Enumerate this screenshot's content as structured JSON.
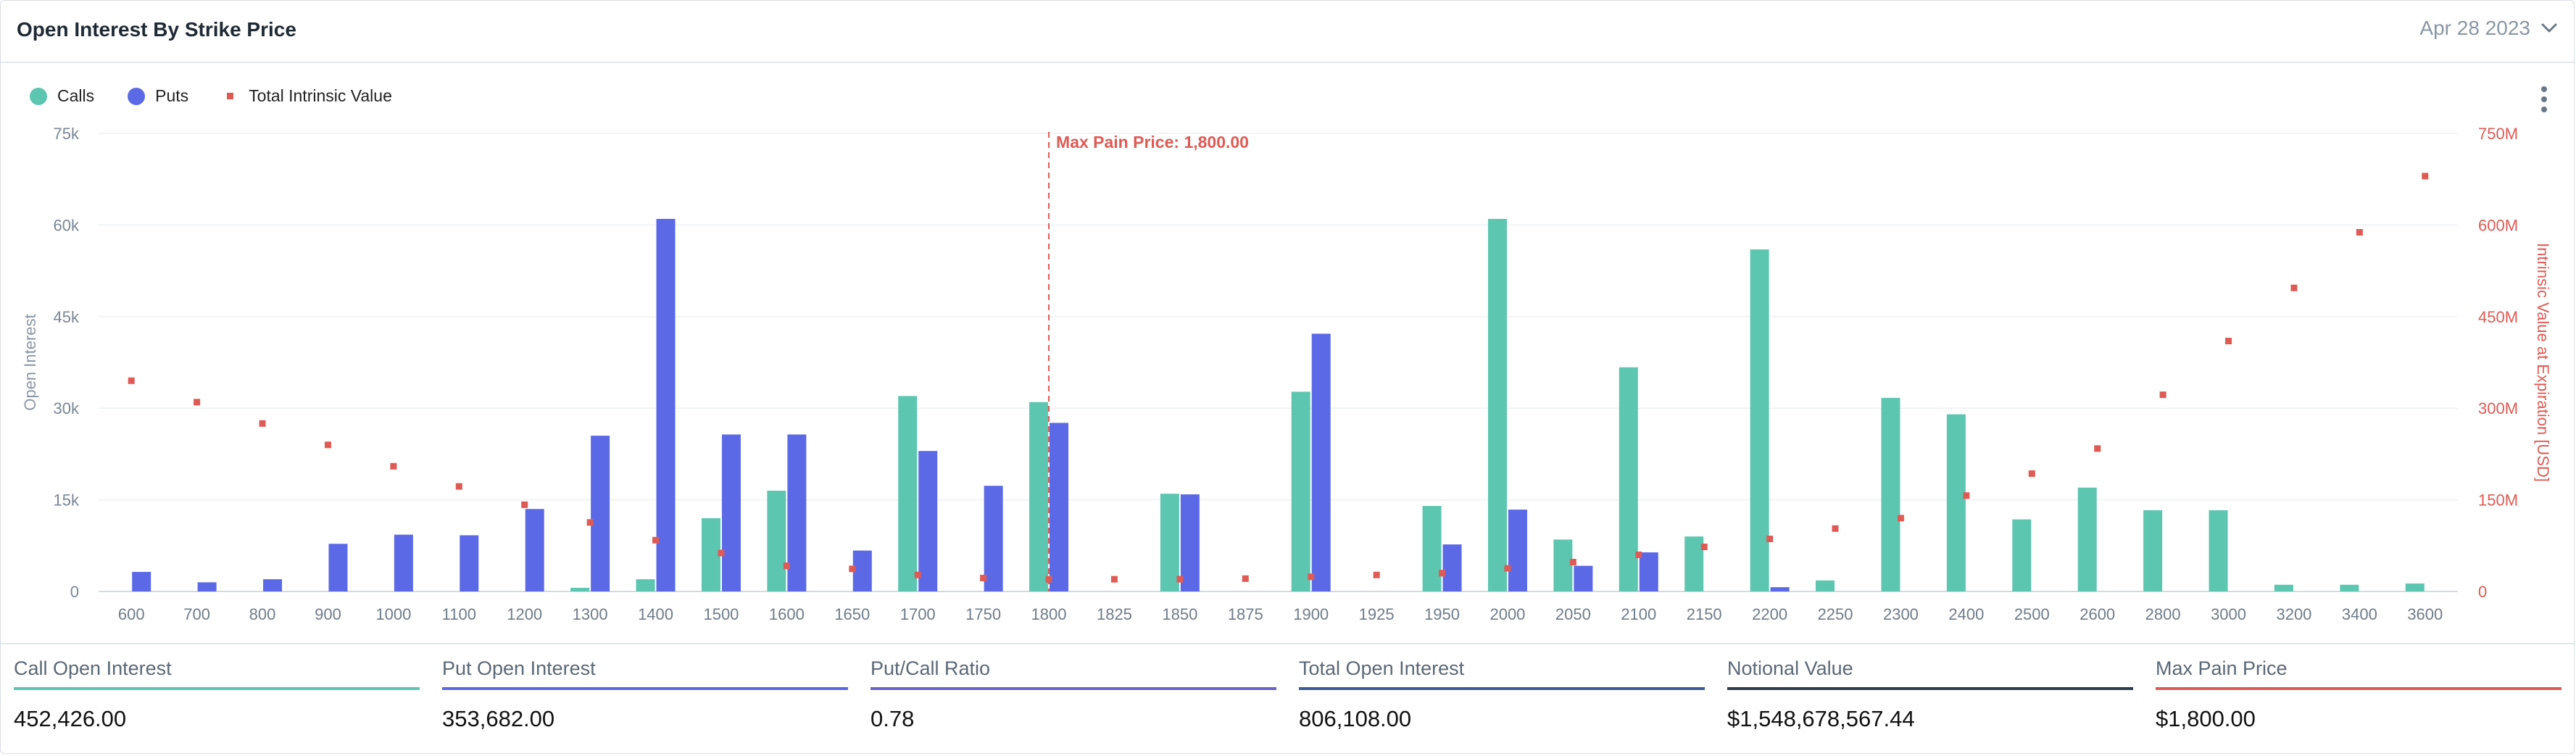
{
  "header": {
    "title": "Open Interest By Strike Price",
    "date": "Apr 28 2023"
  },
  "legend": [
    {
      "label": "Calls",
      "color": "#5cc6b1",
      "shape": "circle"
    },
    {
      "label": "Puts",
      "color": "#5b69e6",
      "shape": "circle"
    },
    {
      "label": "Total Intrinsic Value",
      "color": "#e05a55",
      "shape": "square"
    }
  ],
  "chart_data": {
    "type": "bar",
    "categories": [
      "600",
      "700",
      "800",
      "900",
      "1000",
      "1100",
      "1200",
      "1300",
      "1400",
      "1500",
      "1600",
      "1650",
      "1700",
      "1750",
      "1800",
      "1825",
      "1850",
      "1875",
      "1900",
      "1925",
      "1950",
      "2000",
      "2050",
      "2100",
      "2150",
      "2200",
      "2250",
      "2300",
      "2400",
      "2500",
      "2600",
      "2800",
      "3000",
      "3200",
      "3400",
      "3600"
    ],
    "series": [
      {
        "name": "Calls",
        "color": "#5cc6b1",
        "axis": "left",
        "values": [
          0,
          0,
          0,
          0,
          0,
          0,
          0,
          600,
          2000,
          12000,
          16500,
          0,
          32000,
          0,
          31000,
          0,
          16000,
          0,
          32700,
          0,
          14000,
          61000,
          8500,
          36700,
          9000,
          56000,
          1800,
          31700,
          29000,
          11800,
          17000,
          13300,
          13300,
          1100,
          1100,
          1300
        ]
      },
      {
        "name": "Puts",
        "color": "#5b69e6",
        "axis": "left",
        "values": [
          3200,
          1500,
          2000,
          7800,
          9300,
          9200,
          13500,
          25500,
          61000,
          25700,
          25700,
          6700,
          23000,
          17300,
          27600,
          0,
          15900,
          0,
          42200,
          0,
          7700,
          13400,
          4200,
          6400,
          0,
          700,
          0,
          0,
          0,
          0,
          0,
          0,
          0,
          0,
          0,
          0
        ]
      },
      {
        "name": "Total Intrinsic Value",
        "color": "#e05a55",
        "axis": "right",
        "type": "scatter",
        "values": [
          345,
          310,
          275,
          240,
          205,
          172,
          142,
          113,
          84,
          63,
          42,
          37,
          27,
          22,
          20,
          20,
          20,
          21,
          24,
          27,
          30,
          38,
          48,
          60,
          73,
          86,
          103,
          120,
          157,
          193,
          234,
          322,
          410,
          497,
          588,
          680
        ]
      }
    ],
    "annotation": {
      "label": "Max Pain Price: 1,800.00",
      "category": "1800"
    },
    "y_left": {
      "label": "Open Interest",
      "ylim": [
        0,
        75000
      ],
      "ticks": [
        "0",
        "15k",
        "30k",
        "45k",
        "60k",
        "75k"
      ]
    },
    "y_right": {
      "label": "Intrinsic Value at Expiration [USD]",
      "ylim": [
        0,
        750
      ],
      "ticks": [
        "0",
        "150M",
        "300M",
        "450M",
        "600M",
        "750M"
      ]
    }
  },
  "stats": [
    {
      "label": "Call Open Interest",
      "value": "452,426.00",
      "color": "#5cc6b1"
    },
    {
      "label": "Put Open Interest",
      "value": "353,682.00",
      "color": "#5b69e6"
    },
    {
      "label": "Put/Call Ratio",
      "value": "0.78",
      "color": "#6b63c9"
    },
    {
      "label": "Total Open Interest",
      "value": "806,108.00",
      "color": "#3d5a99"
    },
    {
      "label": "Notional Value",
      "value": "$1,548,678,567.44",
      "color": "#2e3b4e"
    },
    {
      "label": "Max Pain Price",
      "value": "$1,800.00",
      "color": "#e05a55"
    }
  ]
}
